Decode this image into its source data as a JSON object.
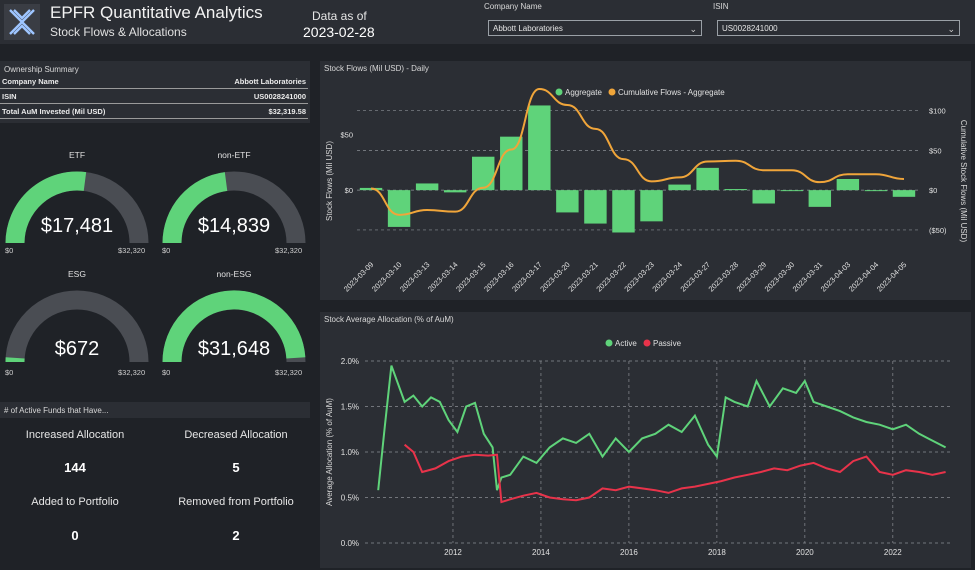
{
  "header": {
    "title": "EPFR Quantitative Analytics",
    "subtitle": "Stock Flows & Allocations",
    "data_as_of_label": "Data as of",
    "data_as_of_date": "2023-02-28",
    "company_name_label": "Company Name",
    "company_name_value": "Abbott Laboratories",
    "isin_label": "ISIN",
    "isin_value": "US0028241000"
  },
  "ownership_summary": {
    "title": "Ownership Summary",
    "rows": [
      {
        "label": "Company Name",
        "value": "Abbott Laboratories"
      },
      {
        "label": "ISIN",
        "value": "US0028241000"
      },
      {
        "label": "Total AuM Invested (Mil USD)",
        "value": "$32,319.58"
      }
    ]
  },
  "gauges": [
    {
      "label": "ETF",
      "value": "$17,481",
      "fraction": 0.541,
      "min": "$0",
      "max": "$32,320"
    },
    {
      "label": "non-ETF",
      "value": "$14,839",
      "fraction": 0.459,
      "min": "$0",
      "max": "$32,320"
    },
    {
      "label": "ESG",
      "value": "$672",
      "fraction": 0.021,
      "min": "$0",
      "max": "$32,320"
    },
    {
      "label": "non-ESG",
      "value": "$31,648",
      "fraction": 0.979,
      "min": "$0",
      "max": "$32,320"
    }
  ],
  "active_funds": {
    "title": "# of Active Funds that Have...",
    "items": [
      {
        "label": "Increased Allocation",
        "value": "144"
      },
      {
        "label": "Decreased Allocation",
        "value": "5"
      },
      {
        "label": "Added to Portfolio",
        "value": "0"
      },
      {
        "label": "Removed from Portfolio",
        "value": "2"
      }
    ]
  },
  "colors": {
    "green": "#5fd37a",
    "orange": "#f0a53a",
    "red": "#e8334a",
    "gauge_track": "#4a4d53"
  },
  "chart_data": [
    {
      "type": "bar",
      "title": "Stock Flows (Mil USD) - Daily",
      "ylabel": "Stock Flows (Mil USD)",
      "y2label": "Cumulative Stock Flows (Mil USD)",
      "categories": [
        "2023-03-09",
        "2023-03-10",
        "2023-03-13",
        "2023-03-14",
        "2023-03-15",
        "2023-03-16",
        "2023-03-17",
        "2023-03-20",
        "2023-03-21",
        "2023-03-22",
        "2023-03-23",
        "2023-03-24",
        "2023-03-27",
        "2023-03-28",
        "2023-03-29",
        "2023-03-30",
        "2023-03-31",
        "2023-04-03",
        "2023-04-04",
        "2023-04-05"
      ],
      "ylim": [
        -60,
        80
      ],
      "y2lim": [
        -84,
        112
      ],
      "yticks": [
        {
          "v": 50,
          "label": "$50"
        },
        {
          "v": 0,
          "label": "$0"
        }
      ],
      "y2ticks": [
        {
          "v": 100,
          "label": "$100"
        },
        {
          "v": 50,
          "label": "$50"
        },
        {
          "v": 0,
          "label": "$0"
        },
        {
          "v": -50,
          "label": "($50)"
        }
      ],
      "legend": [
        "Aggregate",
        "Cumulative Flows - Aggregate"
      ],
      "series": [
        {
          "name": "Aggregate",
          "kind": "bar",
          "values": [
            2,
            -33,
            6,
            -2,
            30,
            48,
            76,
            -20,
            -30,
            -38,
            -28,
            5,
            20,
            1,
            -12,
            0,
            -15,
            10,
            0,
            -6
          ]
        },
        {
          "name": "Cumulative Flows - Aggregate",
          "kind": "line",
          "values": [
            2,
            -31,
            -25,
            -27,
            3,
            51,
            127,
            107,
            77,
            39,
            11,
            16,
            36,
            37,
            25,
            25,
            10,
            20,
            20,
            14
          ]
        }
      ]
    },
    {
      "type": "line",
      "title": "Stock Average Allocation (% of AuM)",
      "ylabel": "Average Allocation (% of AuM)",
      "xlim": [
        2010.0,
        2023.3
      ],
      "ylim": [
        0,
        2.0
      ],
      "xticks": [
        {
          "v": 2012,
          "label": "2012"
        },
        {
          "v": 2014,
          "label": "2014"
        },
        {
          "v": 2016,
          "label": "2016"
        },
        {
          "v": 2018,
          "label": "2018"
        },
        {
          "v": 2020,
          "label": "2020"
        },
        {
          "v": 2022,
          "label": "2022"
        }
      ],
      "yticks": [
        {
          "v": 0,
          "label": "0.0%"
        },
        {
          "v": 0.5,
          "label": "0.5%"
        },
        {
          "v": 1.0,
          "label": "1.0%"
        },
        {
          "v": 1.5,
          "label": "1.5%"
        },
        {
          "v": 2.0,
          "label": "2.0%"
        }
      ],
      "legend": [
        "Active",
        "Passive"
      ],
      "series": [
        {
          "name": "Active",
          "x": [
            2010.3,
            2010.45,
            2010.6,
            2010.9,
            2011.1,
            2011.3,
            2011.5,
            2011.7,
            2011.9,
            2012.1,
            2012.3,
            2012.5,
            2012.7,
            2012.9,
            2013.0,
            2013.1,
            2013.3,
            2013.6,
            2013.9,
            2014.2,
            2014.5,
            2014.8,
            2015.1,
            2015.4,
            2015.7,
            2016.0,
            2016.3,
            2016.6,
            2016.9,
            2017.2,
            2017.5,
            2017.8,
            2018.0,
            2018.2,
            2018.4,
            2018.7,
            2018.9,
            2019.2,
            2019.5,
            2019.8,
            2020.0,
            2020.2,
            2020.5,
            2020.8,
            2021.1,
            2021.4,
            2021.7,
            2022.0,
            2022.3,
            2022.6,
            2022.8,
            2023.0,
            2023.2
          ],
          "values": [
            0.58,
            1.28,
            1.95,
            1.55,
            1.62,
            1.5,
            1.6,
            1.55,
            1.35,
            1.22,
            1.5,
            1.54,
            1.2,
            1.05,
            0.58,
            0.72,
            0.75,
            0.95,
            0.88,
            1.05,
            1.15,
            1.1,
            1.2,
            0.95,
            1.15,
            1.0,
            1.15,
            1.2,
            1.3,
            1.22,
            1.4,
            1.08,
            0.95,
            1.6,
            1.55,
            1.5,
            1.78,
            1.5,
            1.7,
            1.65,
            1.78,
            1.55,
            1.5,
            1.45,
            1.38,
            1.33,
            1.3,
            1.25,
            1.3,
            1.2,
            1.15,
            1.1,
            1.05
          ]
        },
        {
          "name": "Passive",
          "x": [
            2010.9,
            2011.1,
            2011.3,
            2011.6,
            2011.9,
            2012.2,
            2012.5,
            2012.8,
            2013.0,
            2013.1,
            2013.3,
            2013.6,
            2013.9,
            2014.2,
            2014.5,
            2014.8,
            2015.1,
            2015.4,
            2015.7,
            2016.0,
            2016.3,
            2016.6,
            2016.9,
            2017.2,
            2017.5,
            2017.8,
            2018.1,
            2018.4,
            2018.7,
            2019.0,
            2019.3,
            2019.6,
            2019.9,
            2020.2,
            2020.5,
            2020.8,
            2021.1,
            2021.4,
            2021.7,
            2022.0,
            2022.3,
            2022.6,
            2022.9,
            2023.2
          ],
          "values": [
            1.08,
            1.0,
            0.78,
            0.82,
            0.9,
            0.95,
            0.97,
            0.96,
            0.97,
            0.45,
            0.48,
            0.52,
            0.55,
            0.5,
            0.48,
            0.47,
            0.5,
            0.6,
            0.58,
            0.62,
            0.6,
            0.58,
            0.55,
            0.6,
            0.62,
            0.65,
            0.68,
            0.72,
            0.75,
            0.78,
            0.82,
            0.8,
            0.85,
            0.88,
            0.82,
            0.78,
            0.9,
            0.95,
            0.78,
            0.75,
            0.8,
            0.78,
            0.75,
            0.78
          ]
        }
      ]
    }
  ]
}
